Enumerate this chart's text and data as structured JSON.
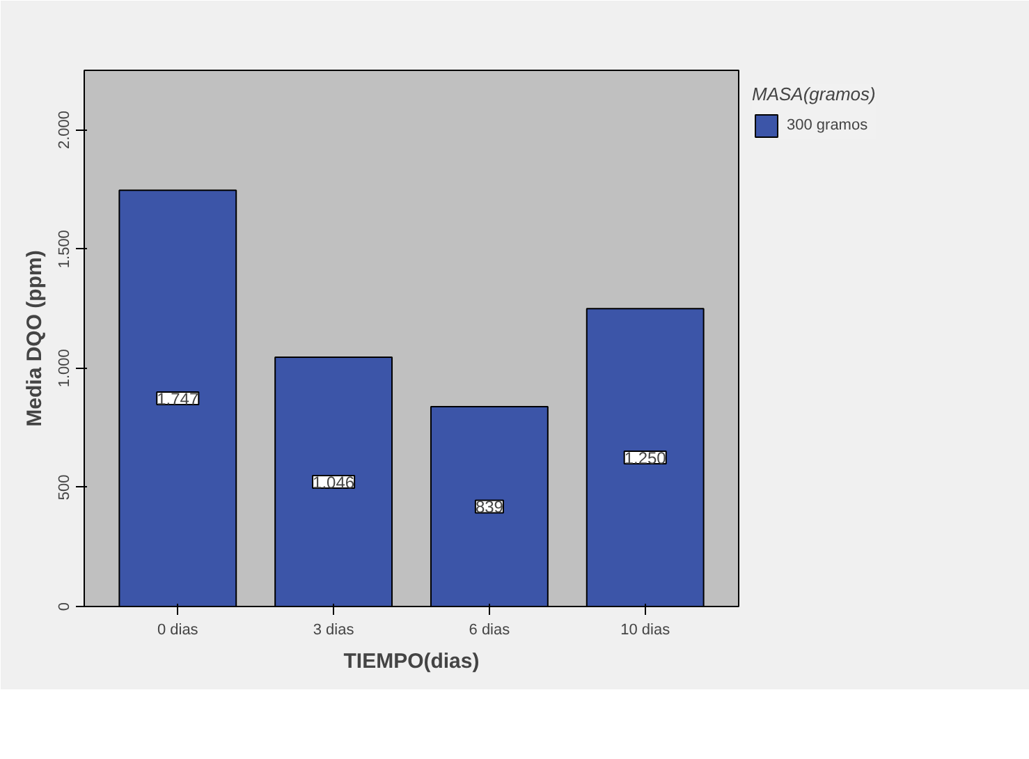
{
  "chart_data": {
    "type": "bar",
    "xlabel": "TIEMPO(dias)",
    "ylabel": "Media DQO (ppm)",
    "legend_title": "MASA(gramos)",
    "categories": [
      "0 dias",
      "3 dias",
      "6 dias",
      "10 dias"
    ],
    "series": [
      {
        "name": "300 gramos",
        "color": "#3c55a8",
        "values": [
          1747,
          1046,
          839,
          1250
        ],
        "value_labels": [
          "1.747",
          "1.046",
          "839",
          "1.250"
        ]
      }
    ],
    "ylim": [
      0,
      2250
    ],
    "yticks": [
      0,
      500,
      {
        "value": 1000,
        "label": "1.000"
      },
      {
        "value": 1500,
        "label": "1.500"
      },
      {
        "value": 2000,
        "label": "2.000"
      }
    ],
    "grid": false,
    "legend": "top right"
  }
}
